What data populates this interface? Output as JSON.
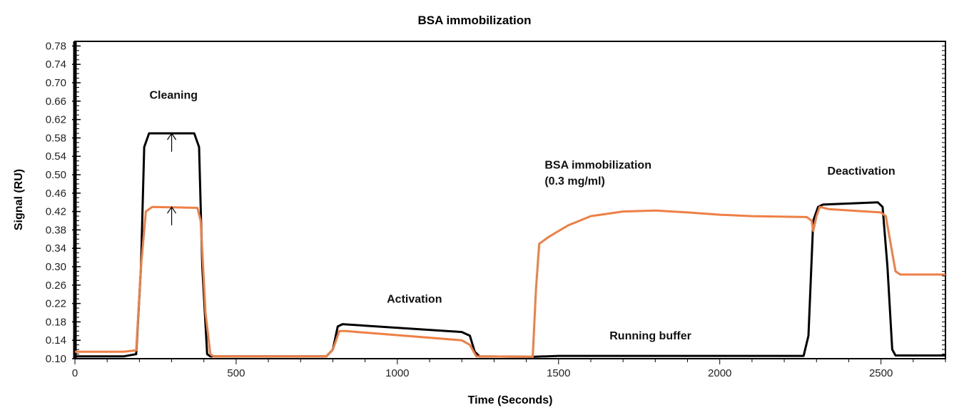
{
  "chart_data": {
    "type": "line",
    "title": "BSA immobilization",
    "xlabel": "Time (Seconds)",
    "ylabel": "Signal (RU)",
    "xlim": [
      0,
      2700
    ],
    "ylim": [
      0.1,
      0.79
    ],
    "xticks": [
      0,
      500,
      1000,
      1500,
      2000,
      2500
    ],
    "yticks": [
      "0.10",
      "0.14",
      "0.18",
      "0.22",
      "0.26",
      "0.30",
      "0.34",
      "0.38",
      "0.42",
      "0.46",
      "0.50",
      "0.54",
      "0.58",
      "0.62",
      "0.66",
      "0.70",
      "0.74",
      "0.78"
    ],
    "grid": false,
    "series": [
      {
        "color": "#000000",
        "x": [
          0,
          150,
          190,
          205,
          215,
          230,
          370,
          385,
          395,
          410,
          420,
          780,
          800,
          815,
          830,
          1200,
          1225,
          1240,
          1255,
          1420,
          1500,
          2260,
          2275,
          2290,
          2305,
          2320,
          2490,
          2505,
          2520,
          2535,
          2545,
          2700
        ],
        "y": [
          0.105,
          0.105,
          0.11,
          0.3,
          0.56,
          0.59,
          0.59,
          0.56,
          0.3,
          0.11,
          0.105,
          0.105,
          0.12,
          0.17,
          0.175,
          0.158,
          0.15,
          0.115,
          0.105,
          0.104,
          0.106,
          0.106,
          0.15,
          0.4,
          0.43,
          0.435,
          0.44,
          0.43,
          0.3,
          0.12,
          0.107,
          0.107
        ]
      },
      {
        "color": "#ee7f45",
        "x": [
          0,
          150,
          190,
          205,
          220,
          240,
          380,
          390,
          405,
          420,
          430,
          780,
          800,
          820,
          840,
          1200,
          1225,
          1245,
          1420,
          1430,
          1440,
          1470,
          1530,
          1600,
          1700,
          1800,
          1900,
          2000,
          2100,
          2270,
          2285,
          2290,
          2300,
          2310,
          2340,
          2500,
          2515,
          2530,
          2545,
          2560,
          2700
        ],
        "y": [
          0.115,
          0.115,
          0.118,
          0.3,
          0.42,
          0.43,
          0.428,
          0.4,
          0.2,
          0.11,
          0.105,
          0.105,
          0.12,
          0.16,
          0.16,
          0.14,
          0.13,
          0.105,
          0.104,
          0.25,
          0.35,
          0.365,
          0.39,
          0.41,
          0.42,
          0.422,
          0.418,
          0.413,
          0.41,
          0.408,
          0.4,
          0.378,
          0.41,
          0.43,
          0.425,
          0.418,
          0.41,
          0.35,
          0.29,
          0.283,
          0.283
        ]
      }
    ],
    "annotations": [
      {
        "text": "Cleaning",
        "x": 306,
        "y": 0.665,
        "anchor": "middle"
      },
      {
        "text": "Activation",
        "x": 1053,
        "y": 0.222,
        "anchor": "middle"
      },
      {
        "text": "BSA immobilization",
        "x": 1457,
        "y": 0.513,
        "anchor": "start"
      },
      {
        "text": "(0.3 mg/ml)",
        "x": 1457,
        "y": 0.478,
        "anchor": "start"
      },
      {
        "text": "Running buffer",
        "x": 1785,
        "y": 0.142,
        "anchor": "middle"
      },
      {
        "text": "Deactivation",
        "x": 2439,
        "y": 0.5,
        "anchor": "middle"
      }
    ],
    "arrows": [
      {
        "x": 300,
        "from": 0.55,
        "to": 0.59
      },
      {
        "x": 300,
        "from": 0.39,
        "to": 0.43
      }
    ]
  }
}
